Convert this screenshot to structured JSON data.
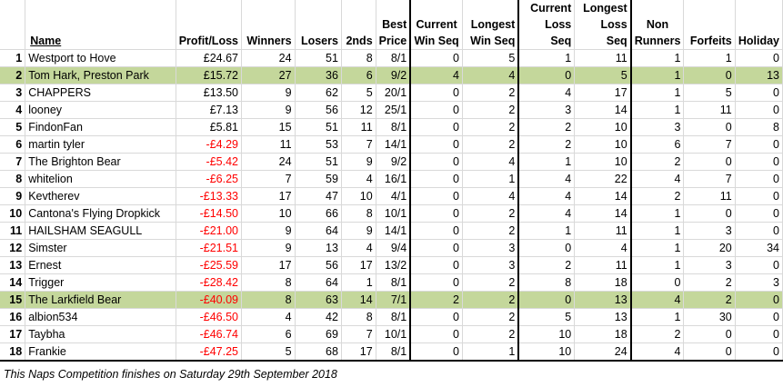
{
  "headers": {
    "name": "Name",
    "profit_loss": "Profit/Loss",
    "winners": "Winners",
    "losers": "Losers",
    "seconds": "2nds",
    "best_price": "Best Price",
    "current_win_seq": "Current Win Seq",
    "longest_win_seq": "Longest Win Seq",
    "current_loss_seq": "Current Loss Seq",
    "longest_loss_seq": "Longest Loss Seq",
    "non_runners": "Non Runners",
    "forfeits": "Forfeits",
    "holiday": "Holiday"
  },
  "rows": [
    {
      "rank": "1",
      "name": "Westport to Hove",
      "pl": "£24.67",
      "neg": false,
      "w": "24",
      "l": "51",
      "s": "8",
      "bp": "8/1",
      "cws": "0",
      "lws": "5",
      "cls": "1",
      "lls": "11",
      "nr": "1",
      "f": "1",
      "h": "0",
      "hl": false
    },
    {
      "rank": "2",
      "name": "Tom Hark, Preston Park",
      "pl": "£15.72",
      "neg": false,
      "w": "27",
      "l": "36",
      "s": "6",
      "bp": "9/2",
      "cws": "4",
      "lws": "4",
      "cls": "0",
      "lls": "5",
      "nr": "1",
      "f": "0",
      "h": "13",
      "hl": true
    },
    {
      "rank": "3",
      "name": "CHAPPERS",
      "pl": "£13.50",
      "neg": false,
      "w": "9",
      "l": "62",
      "s": "5",
      "bp": "20/1",
      "cws": "0",
      "lws": "2",
      "cls": "4",
      "lls": "17",
      "nr": "1",
      "f": "5",
      "h": "0",
      "hl": false
    },
    {
      "rank": "4",
      "name": "looney",
      "pl": "£7.13",
      "neg": false,
      "w": "9",
      "l": "56",
      "s": "12",
      "bp": "25/1",
      "cws": "0",
      "lws": "2",
      "cls": "3",
      "lls": "14",
      "nr": "1",
      "f": "11",
      "h": "0",
      "hl": false
    },
    {
      "rank": "5",
      "name": "FindonFan",
      "pl": "£5.81",
      "neg": false,
      "w": "15",
      "l": "51",
      "s": "11",
      "bp": "8/1",
      "cws": "0",
      "lws": "2",
      "cls": "2",
      "lls": "10",
      "nr": "3",
      "f": "0",
      "h": "8",
      "hl": false
    },
    {
      "rank": "6",
      "name": "martin tyler",
      "pl": "-£4.29",
      "neg": true,
      "w": "11",
      "l": "53",
      "s": "7",
      "bp": "14/1",
      "cws": "0",
      "lws": "2",
      "cls": "2",
      "lls": "10",
      "nr": "6",
      "f": "7",
      "h": "0",
      "hl": false
    },
    {
      "rank": "7",
      "name": "The Brighton Bear",
      "pl": "-£5.42",
      "neg": true,
      "w": "24",
      "l": "51",
      "s": "9",
      "bp": "9/2",
      "cws": "0",
      "lws": "4",
      "cls": "1",
      "lls": "10",
      "nr": "2",
      "f": "0",
      "h": "0",
      "hl": false
    },
    {
      "rank": "8",
      "name": "whitelion",
      "pl": "-£6.25",
      "neg": true,
      "w": "7",
      "l": "59",
      "s": "4",
      "bp": "16/1",
      "cws": "0",
      "lws": "1",
      "cls": "4",
      "lls": "22",
      "nr": "4",
      "f": "7",
      "h": "0",
      "hl": false
    },
    {
      "rank": "9",
      "name": "Kevtherev",
      "pl": "-£13.33",
      "neg": true,
      "w": "17",
      "l": "47",
      "s": "10",
      "bp": "4/1",
      "cws": "0",
      "lws": "4",
      "cls": "4",
      "lls": "14",
      "nr": "2",
      "f": "11",
      "h": "0",
      "hl": false
    },
    {
      "rank": "10",
      "name": "Cantona's Flying Dropkick",
      "pl": "-£14.50",
      "neg": true,
      "w": "10",
      "l": "66",
      "s": "8",
      "bp": "10/1",
      "cws": "0",
      "lws": "2",
      "cls": "4",
      "lls": "14",
      "nr": "1",
      "f": "0",
      "h": "0",
      "hl": false
    },
    {
      "rank": "11",
      "name": "HAILSHAM SEAGULL",
      "pl": "-£21.00",
      "neg": true,
      "w": "9",
      "l": "64",
      "s": "9",
      "bp": "14/1",
      "cws": "0",
      "lws": "2",
      "cls": "1",
      "lls": "11",
      "nr": "1",
      "f": "3",
      "h": "0",
      "hl": false
    },
    {
      "rank": "12",
      "name": "Simster",
      "pl": "-£21.51",
      "neg": true,
      "w": "9",
      "l": "13",
      "s": "4",
      "bp": "9/4",
      "cws": "0",
      "lws": "3",
      "cls": "0",
      "lls": "4",
      "nr": "1",
      "f": "20",
      "h": "34",
      "hl": false
    },
    {
      "rank": "13",
      "name": "Ernest",
      "pl": "-£25.59",
      "neg": true,
      "w": "17",
      "l": "56",
      "s": "17",
      "bp": "13/2",
      "cws": "0",
      "lws": "3",
      "cls": "2",
      "lls": "11",
      "nr": "1",
      "f": "3",
      "h": "0",
      "hl": false
    },
    {
      "rank": "14",
      "name": "Trigger",
      "pl": "-£28.42",
      "neg": true,
      "w": "8",
      "l": "64",
      "s": "1",
      "bp": "8/1",
      "cws": "0",
      "lws": "2",
      "cls": "8",
      "lls": "18",
      "nr": "0",
      "f": "2",
      "h": "3",
      "hl": false
    },
    {
      "rank": "15",
      "name": "The Larkfield Bear",
      "pl": "-£40.09",
      "neg": true,
      "w": "8",
      "l": "63",
      "s": "14",
      "bp": "7/1",
      "cws": "2",
      "lws": "2",
      "cls": "0",
      "lls": "13",
      "nr": "4",
      "f": "2",
      "h": "0",
      "hl": true
    },
    {
      "rank": "16",
      "name": "albion534",
      "pl": "-£46.50",
      "neg": true,
      "w": "4",
      "l": "42",
      "s": "8",
      "bp": "8/1",
      "cws": "0",
      "lws": "2",
      "cls": "5",
      "lls": "13",
      "nr": "1",
      "f": "30",
      "h": "0",
      "hl": false
    },
    {
      "rank": "17",
      "name": "Taybha",
      "pl": "-£46.74",
      "neg": true,
      "w": "6",
      "l": "69",
      "s": "7",
      "bp": "10/1",
      "cws": "0",
      "lws": "2",
      "cls": "10",
      "lls": "18",
      "nr": "2",
      "f": "0",
      "h": "0",
      "hl": false
    },
    {
      "rank": "18",
      "name": "Frankie",
      "pl": "-£47.25",
      "neg": true,
      "w": "5",
      "l": "68",
      "s": "17",
      "bp": "8/1",
      "cws": "0",
      "lws": "1",
      "cls": "10",
      "lls": "24",
      "nr": "4",
      "f": "0",
      "h": "0",
      "hl": false
    }
  ],
  "footer": "This Naps Competition finishes on Saturday 29th September 2018",
  "colors": {
    "highlight": "#c4d79b",
    "negative": "#ff0000"
  }
}
